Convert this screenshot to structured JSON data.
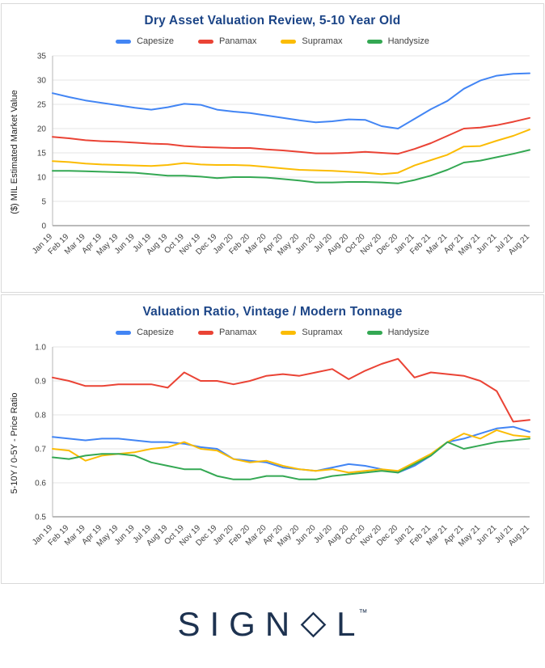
{
  "colors": {
    "capesize": "#4285f4",
    "panamax": "#ea4335",
    "supramax": "#fbbc04",
    "handysize": "#34a853",
    "title": "#1c4587",
    "logo": "#1d3250",
    "grid": "#e6e6e6",
    "baseline": "#757575",
    "axis": "#b7b7b7"
  },
  "logo": {
    "text_before": "SIGN",
    "text_after": "L",
    "trademark": "™"
  },
  "chart_data": [
    {
      "type": "line",
      "title": "Dry Asset Valuation Review, 5-10 Year Old",
      "xlabel": "",
      "ylabel": "($) MIL Estimated Market Value",
      "ylim": [
        0,
        35
      ],
      "yticks": [
        0,
        5,
        10,
        15,
        20,
        25,
        30,
        35
      ],
      "ytick_labels": [
        "0",
        "5",
        "10",
        "15",
        "20",
        "25",
        "30",
        "35"
      ],
      "grid": true,
      "legend_position": "top",
      "categories": [
        "Jan 19",
        "Feb 19",
        "Mar 19",
        "Apr 19",
        "May 19",
        "Jun 19",
        "Jul 19",
        "Aug 19",
        "Oct 19",
        "Nov 19",
        "Dec 19",
        "Jan 20",
        "Feb 20",
        "Mar 20",
        "Apr 20",
        "May 20",
        "Jun 20",
        "Jul 20",
        "Aug 20",
        "Oct 20",
        "Nov 20",
        "Dec 20",
        "Jan 21",
        "Feb 21",
        "Mar 21",
        "Apr 21",
        "May 21",
        "Jun 21",
        "Jul 21",
        "Aug 21"
      ],
      "series": [
        {
          "name": "Capesize",
          "color": "#4285f4",
          "values": [
            27.3,
            26.5,
            25.8,
            25.3,
            24.8,
            24.3,
            23.9,
            24.4,
            25.1,
            24.9,
            23.9,
            23.5,
            23.2,
            22.7,
            22.2,
            21.7,
            21.3,
            21.5,
            21.9,
            21.8,
            20.5,
            20.0,
            22.0,
            24.0,
            25.7,
            28.2,
            29.9,
            30.9,
            31.3,
            31.4
          ]
        },
        {
          "name": "Panamax",
          "color": "#ea4335",
          "values": [
            18.3,
            18.0,
            17.6,
            17.4,
            17.3,
            17.1,
            16.9,
            16.8,
            16.4,
            16.2,
            16.1,
            16.0,
            16.0,
            15.7,
            15.5,
            15.2,
            14.9,
            14.9,
            15.0,
            15.2,
            15.0,
            14.8,
            15.8,
            17.0,
            18.5,
            20.0,
            20.2,
            20.7,
            21.4,
            22.2
          ]
        },
        {
          "name": "Supramax",
          "color": "#fbbc04",
          "values": [
            13.3,
            13.1,
            12.8,
            12.6,
            12.5,
            12.4,
            12.3,
            12.5,
            12.9,
            12.6,
            12.5,
            12.5,
            12.4,
            12.1,
            11.8,
            11.5,
            11.4,
            11.3,
            11.1,
            10.9,
            10.6,
            10.9,
            12.4,
            13.5,
            14.6,
            16.3,
            16.4,
            17.5,
            18.5,
            19.8
          ]
        },
        {
          "name": "Handysize",
          "color": "#34a853",
          "values": [
            11.3,
            11.3,
            11.2,
            11.1,
            11.0,
            10.9,
            10.6,
            10.3,
            10.3,
            10.1,
            9.8,
            10.0,
            10.0,
            9.9,
            9.6,
            9.3,
            8.9,
            8.9,
            9.0,
            9.0,
            8.9,
            8.7,
            9.4,
            10.3,
            11.5,
            13.0,
            13.4,
            14.1,
            14.8,
            15.6
          ]
        }
      ]
    },
    {
      "type": "line",
      "title": "Valuation Ratio, Vintage / Modern Tonnage",
      "xlabel": "",
      "ylabel": "5-10Y / 0-5Y - Price Ratio",
      "ylim": [
        0.5,
        1.0
      ],
      "yticks": [
        0.5,
        0.6,
        0.7,
        0.8,
        0.9,
        1.0
      ],
      "ytick_labels": [
        "0.5",
        "0.6",
        "0.7",
        "0.8",
        "0.9",
        "1.0"
      ],
      "grid": true,
      "legend_position": "top",
      "categories": [
        "Jan 19",
        "Feb 19",
        "Mar 19",
        "Apr 19",
        "May 19",
        "Jun 19",
        "Jul 19",
        "Aug 19",
        "Oct 19",
        "Nov 19",
        "Dec 19",
        "Jan 20",
        "Feb 20",
        "Mar 20",
        "Apr 20",
        "May 20",
        "Jun 20",
        "Jul 20",
        "Aug 20",
        "Oct 20",
        "Nov 20",
        "Dec 20",
        "Jan 21",
        "Feb 21",
        "Mar 21",
        "Apr 21",
        "May 21",
        "Jun 21",
        "Jul 21",
        "Aug 21"
      ],
      "series": [
        {
          "name": "Capesize",
          "color": "#4285f4",
          "values": [
            0.735,
            0.73,
            0.725,
            0.73,
            0.73,
            0.725,
            0.72,
            0.72,
            0.715,
            0.705,
            0.7,
            0.67,
            0.665,
            0.66,
            0.645,
            0.64,
            0.635,
            0.645,
            0.655,
            0.65,
            0.64,
            0.63,
            0.65,
            0.68,
            0.72,
            0.73,
            0.745,
            0.76,
            0.765,
            0.75
          ]
        },
        {
          "name": "Panamax",
          "color": "#ea4335",
          "values": [
            0.91,
            0.9,
            0.885,
            0.885,
            0.89,
            0.89,
            0.89,
            0.88,
            0.925,
            0.9,
            0.9,
            0.89,
            0.9,
            0.915,
            0.92,
            0.915,
            0.925,
            0.935,
            0.905,
            0.93,
            0.95,
            0.965,
            0.91,
            0.925,
            0.92,
            0.915,
            0.9,
            0.87,
            0.78,
            0.785
          ]
        },
        {
          "name": "Supramax",
          "color": "#fbbc04",
          "values": [
            0.7,
            0.695,
            0.665,
            0.68,
            0.685,
            0.69,
            0.7,
            0.705,
            0.72,
            0.7,
            0.695,
            0.67,
            0.66,
            0.665,
            0.65,
            0.64,
            0.635,
            0.64,
            0.63,
            0.635,
            0.64,
            0.635,
            0.66,
            0.685,
            0.72,
            0.745,
            0.73,
            0.755,
            0.74,
            0.735
          ]
        },
        {
          "name": "Handysize",
          "color": "#34a853",
          "values": [
            0.675,
            0.67,
            0.68,
            0.685,
            0.685,
            0.68,
            0.66,
            0.65,
            0.64,
            0.64,
            0.62,
            0.61,
            0.61,
            0.62,
            0.62,
            0.61,
            0.61,
            0.62,
            0.625,
            0.63,
            0.635,
            0.63,
            0.655,
            0.68,
            0.72,
            0.7,
            0.71,
            0.72,
            0.725,
            0.73
          ]
        }
      ]
    }
  ]
}
